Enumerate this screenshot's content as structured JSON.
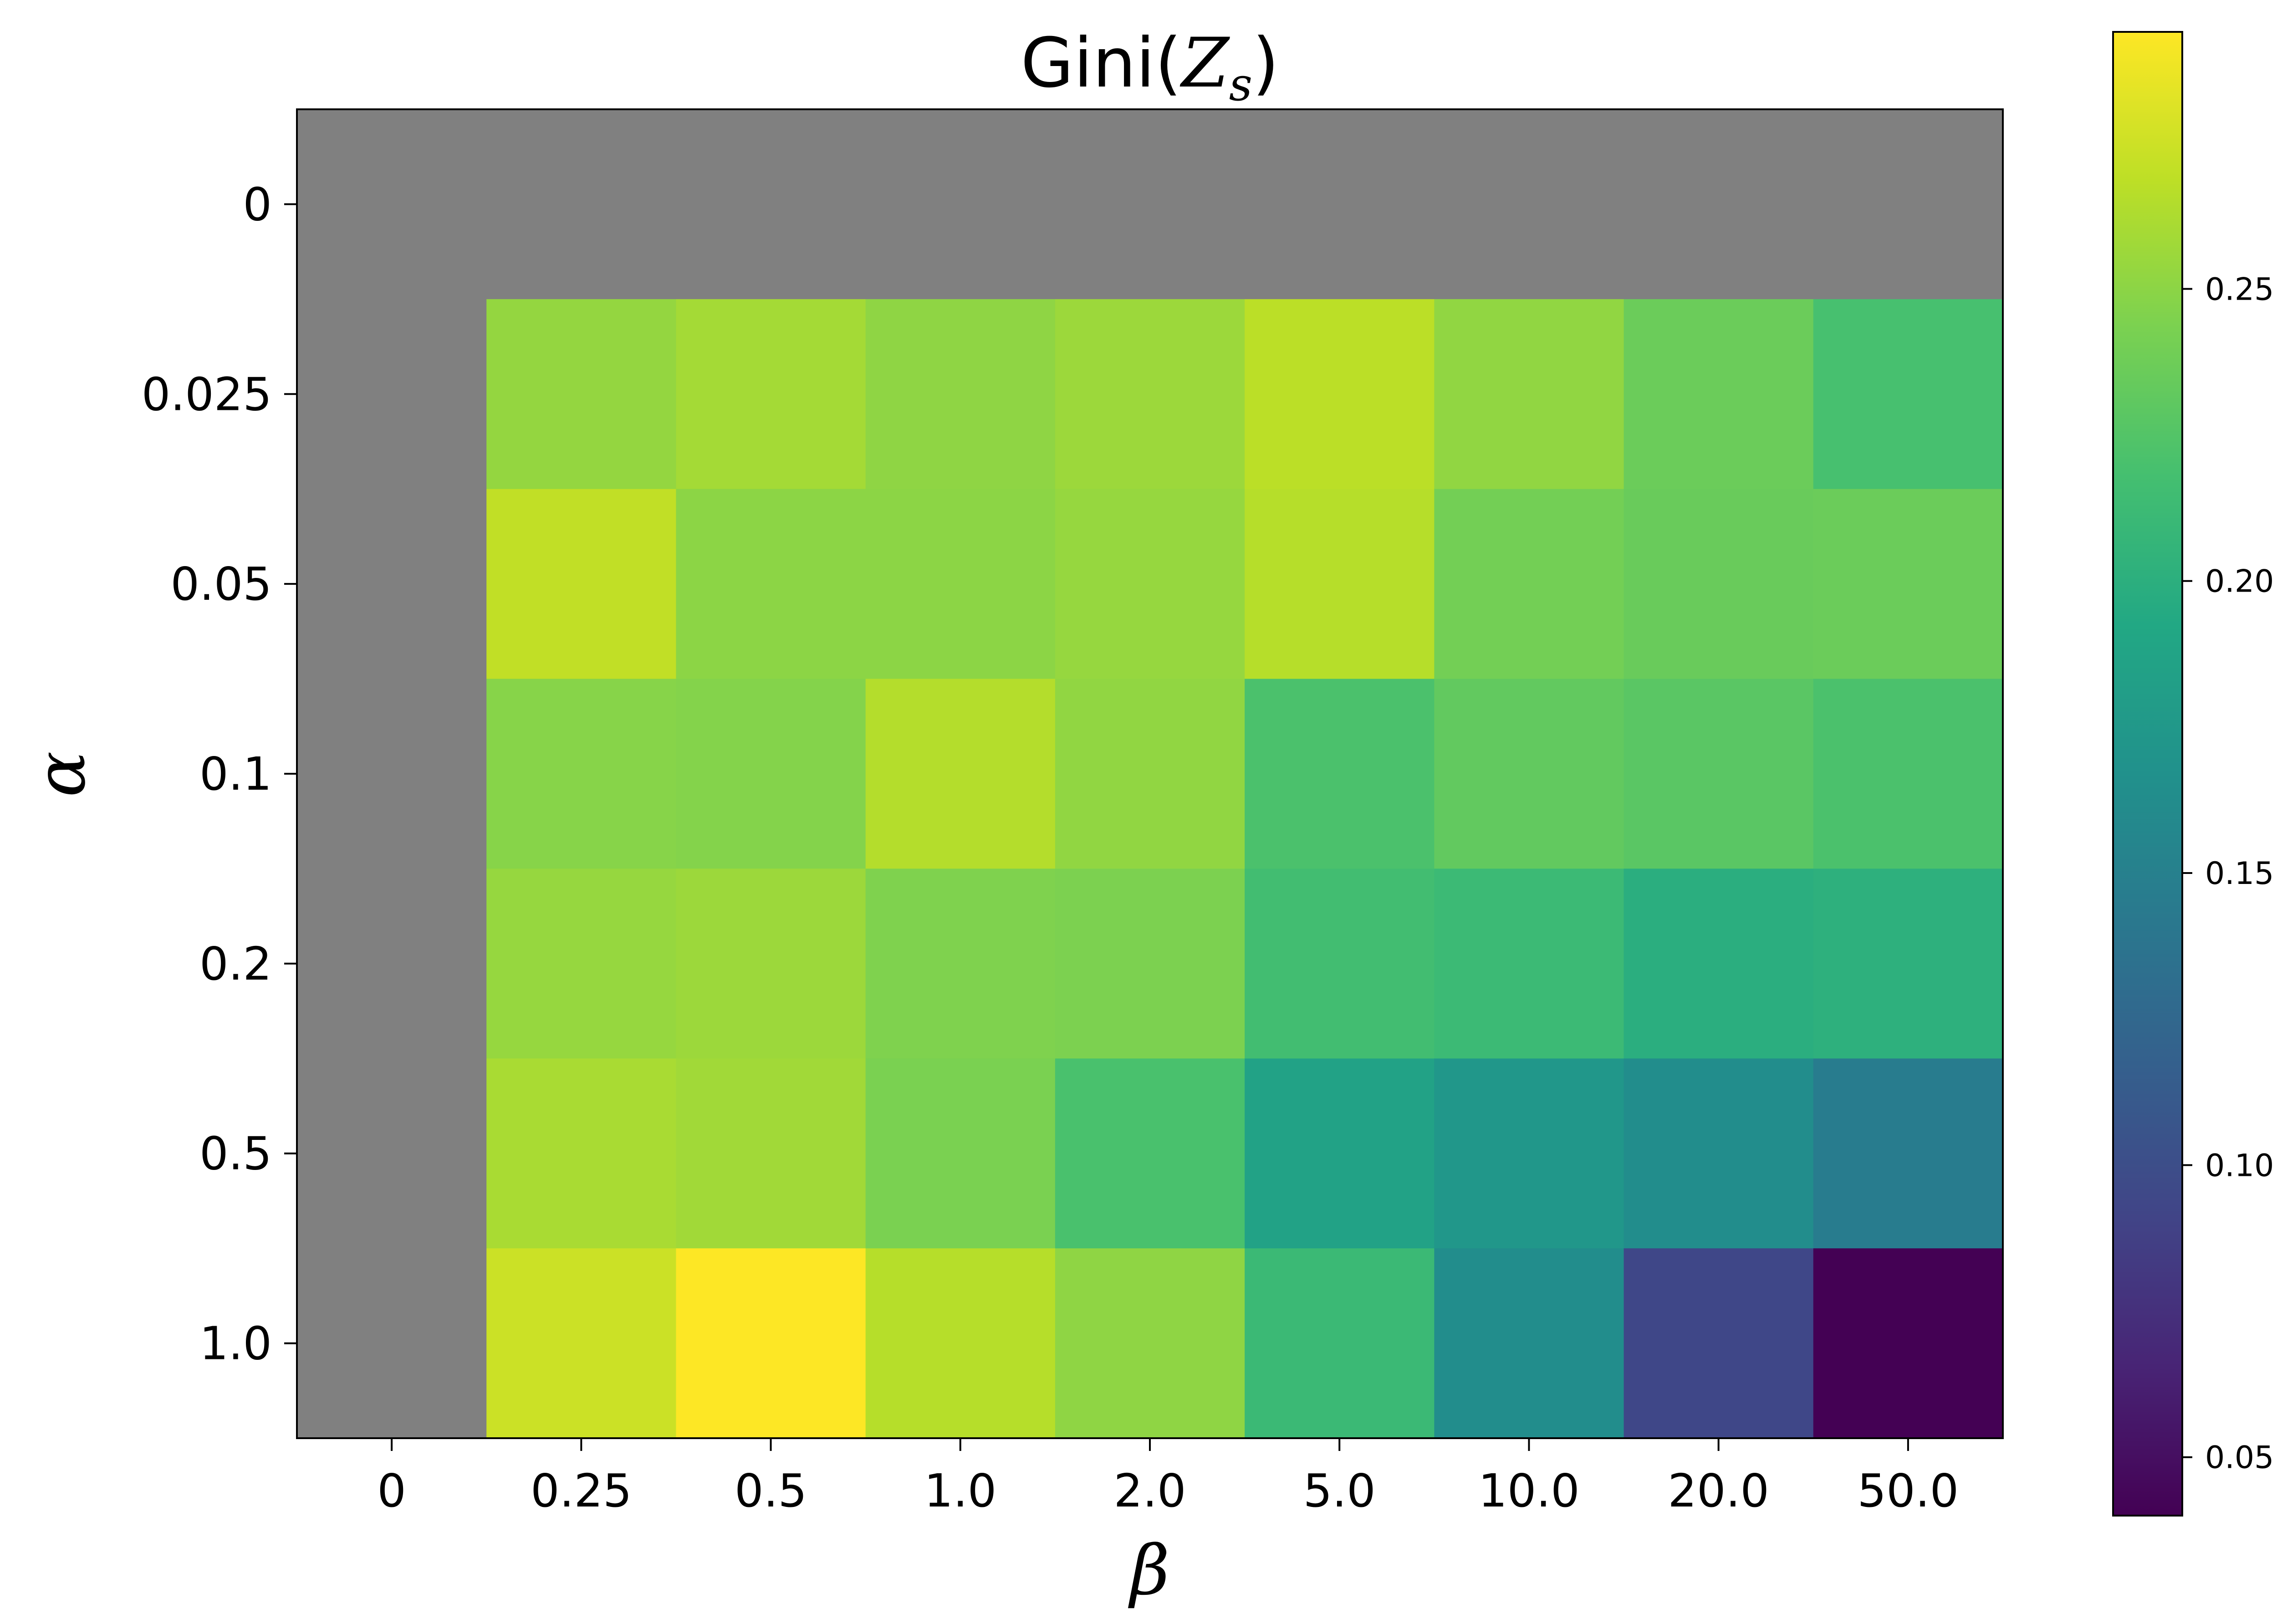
{
  "chart_data": {
    "type": "heatmap",
    "title": "Gini(",
    "title_math": "Z",
    "title_sub": "s",
    "title_close": ")",
    "xlabel": "β",
    "ylabel": "α",
    "x_categories": [
      "0",
      "0.25",
      "0.5",
      "1.0",
      "2.0",
      "5.0",
      "10.0",
      "20.0",
      "50.0"
    ],
    "y_categories": [
      "0",
      "0.025",
      "0.05",
      "0.1",
      "0.2",
      "0.5",
      "1.0"
    ],
    "values": [
      [
        null,
        null,
        null,
        null,
        null,
        null,
        null,
        null,
        null
      ],
      [
        null,
        0.253,
        0.259,
        0.251,
        0.256,
        0.268,
        0.252,
        0.236,
        0.219
      ],
      [
        null,
        0.27,
        0.25,
        0.25,
        0.254,
        0.266,
        0.24,
        0.235,
        0.236
      ],
      [
        null,
        0.248,
        0.247,
        0.265,
        0.252,
        0.221,
        0.232,
        0.228,
        0.221
      ],
      [
        null,
        0.254,
        0.256,
        0.245,
        0.244,
        0.216,
        0.212,
        0.199,
        0.201
      ],
      [
        null,
        0.261,
        0.258,
        0.243,
        0.22,
        0.186,
        0.174,
        0.163,
        0.146
      ],
      [
        null,
        0.274,
        0.294,
        0.266,
        0.251,
        0.211,
        0.163,
        0.094,
        0.04
      ]
    ],
    "missing_color": "#808080",
    "colormap": "viridis",
    "vmin": 0.04,
    "vmax": 0.294,
    "colorbar_ticks": [
      "0.05",
      "0.10",
      "0.15",
      "0.20",
      "0.25"
    ],
    "colorbar_tick_values": [
      0.05,
      0.1,
      0.15,
      0.2,
      0.25
    ]
  }
}
